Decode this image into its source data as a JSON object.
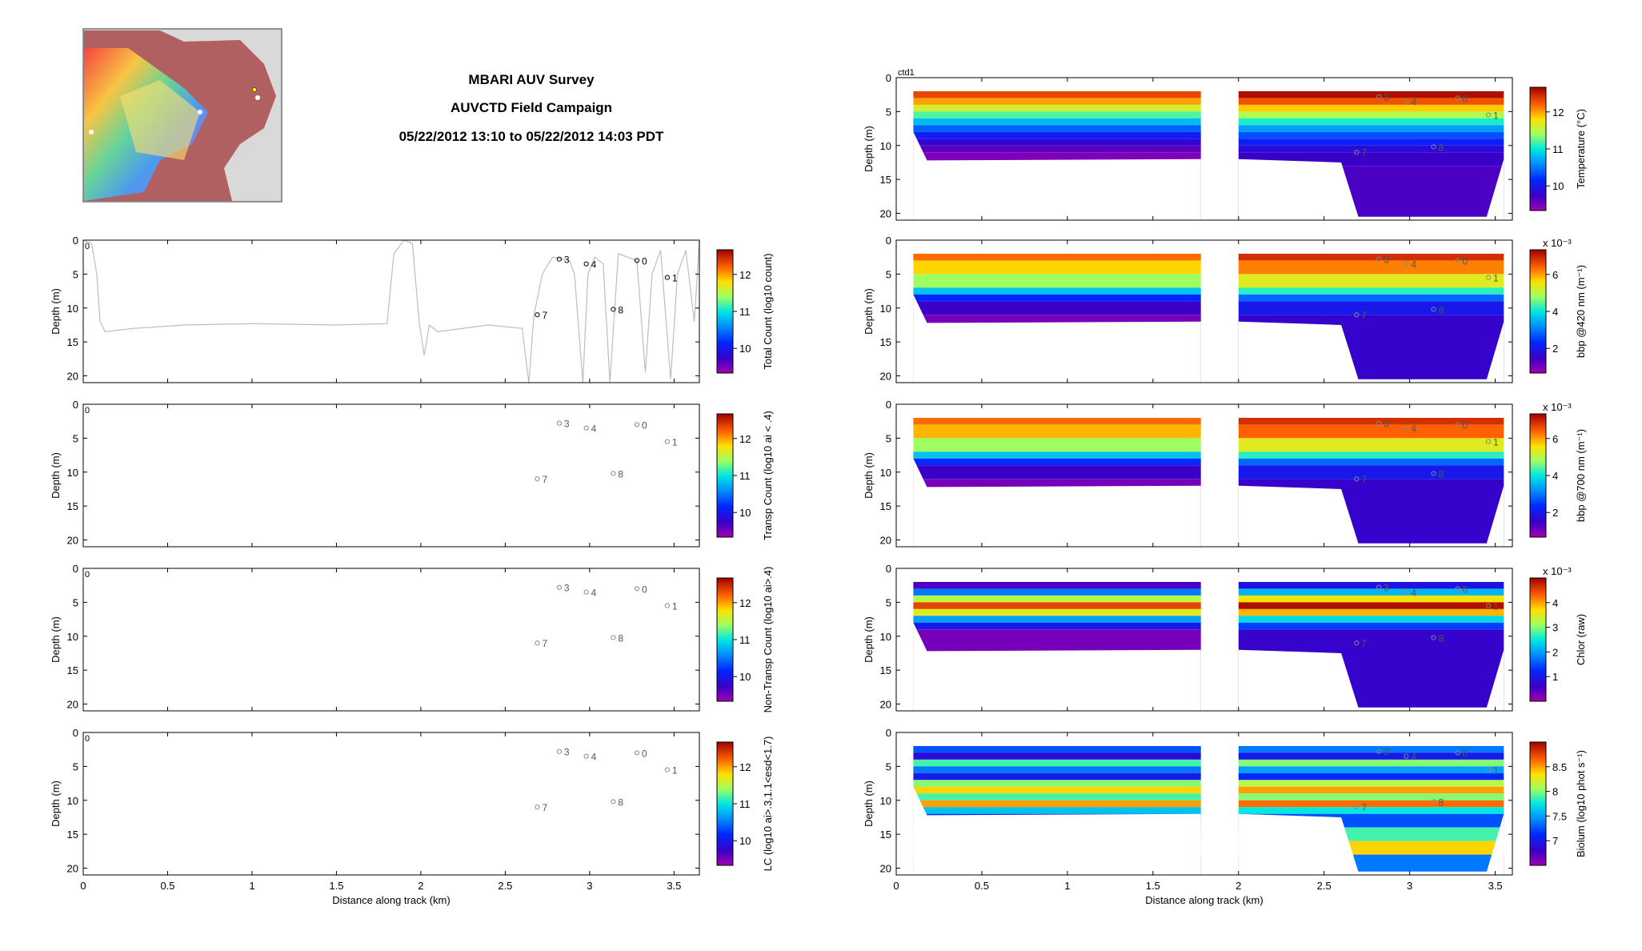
{
  "header": {
    "title": "MBARI AUV Survey",
    "campaign": "AUVCTD Field Campaign",
    "time_range": "05/22/2012 13:10 to 05/22/2012 14:03 PDT"
  },
  "colors": {
    "track_line": "#bdbdbd",
    "marker_dark": "#000000",
    "marker_light": "#888888",
    "axis": "#000000"
  },
  "colormap": "jet",
  "map_icon": "monterey-bay-location-map-icon",
  "x_axis": {
    "label": "Distance along track (km)",
    "left_ticks": [
      "0",
      "0.5",
      "1",
      "1.5",
      "2",
      "2.5",
      "3",
      "3.5"
    ],
    "right_ticks": [
      "0",
      "0.5",
      "1",
      "1.5",
      "2",
      "2.5",
      "3",
      "3.5"
    ]
  },
  "depth_axis": {
    "label": "Depth (m)",
    "ticks": [
      "0",
      "5",
      "10",
      "15",
      "20"
    ]
  },
  "profile_markers": [
    {
      "label": "0",
      "x": 3.28,
      "depth": 3.0
    },
    {
      "label": "1",
      "x": 3.46,
      "depth": 5.5
    },
    {
      "label": "3",
      "x": 2.82,
      "depth": 2.8
    },
    {
      "label": "4",
      "x": 2.98,
      "depth": 3.5
    },
    {
      "label": "7",
      "x": 2.69,
      "depth": 11.0
    },
    {
      "label": "8",
      "x": 3.14,
      "depth": 10.2
    }
  ],
  "chart_data": [
    {
      "type": "line",
      "name": "total-count",
      "cbar_label": "Total Count (log10 count)",
      "cbar_ticks": [
        "10",
        "11",
        "12"
      ],
      "x_range": [
        0,
        3.65
      ],
      "y_range": [
        0,
        21
      ],
      "top_label": "0",
      "track": [
        [
          0.0,
          0
        ],
        [
          0.05,
          0.5
        ],
        [
          0.08,
          5
        ],
        [
          0.1,
          12
        ],
        [
          0.13,
          13.5
        ],
        [
          0.3,
          13
        ],
        [
          0.6,
          12.5
        ],
        [
          1.0,
          12.3
        ],
        [
          1.5,
          12.5
        ],
        [
          1.8,
          12.3
        ],
        [
          1.84,
          2
        ],
        [
          1.9,
          0
        ],
        [
          1.95,
          0.5
        ],
        [
          1.99,
          12
        ],
        [
          2.02,
          17
        ],
        [
          2.05,
          12.5
        ],
        [
          2.1,
          13.5
        ],
        [
          2.4,
          12.5
        ],
        [
          2.6,
          13
        ],
        [
          2.64,
          21
        ],
        [
          2.67,
          11
        ],
        [
          2.72,
          5
        ],
        [
          2.78,
          2.5
        ],
        [
          2.88,
          3
        ],
        [
          2.91,
          5
        ],
        [
          2.96,
          21
        ],
        [
          2.99,
          5
        ],
        [
          3.03,
          2.5
        ],
        [
          3.08,
          3.5
        ],
        [
          3.12,
          21
        ],
        [
          3.17,
          2
        ],
        [
          3.28,
          3
        ],
        [
          3.33,
          19.5
        ],
        [
          3.37,
          5
        ],
        [
          3.42,
          1.5
        ],
        [
          3.48,
          20.5
        ],
        [
          3.52,
          5
        ],
        [
          3.57,
          1.5
        ],
        [
          3.62,
          12
        ],
        [
          3.65,
          0
        ]
      ]
    },
    {
      "type": "scatter",
      "name": "transp-count",
      "cbar_label": "Transp Count (log10 ai < .4)",
      "cbar_ticks": [
        "10",
        "11",
        "12"
      ],
      "x_range": [
        0,
        3.65
      ],
      "y_range": [
        0,
        21
      ],
      "top_label": "0"
    },
    {
      "type": "scatter",
      "name": "non-transp-count",
      "cbar_label": "Non-Transp Count (log10 ai>.4)",
      "cbar_ticks": [
        "10",
        "11",
        "12"
      ],
      "x_range": [
        0,
        3.65
      ],
      "y_range": [
        0,
        21
      ],
      "top_label": "0"
    },
    {
      "type": "scatter",
      "name": "lc-count",
      "cbar_label": "LC (log10 ai>.3,1.1<esd<1.7)",
      "cbar_ticks": [
        "10",
        "11",
        "12"
      ],
      "x_range": [
        0,
        3.65
      ],
      "y_range": [
        0,
        21
      ],
      "top_label": "0"
    },
    {
      "type": "heatmap",
      "name": "temperature",
      "cbar_label": "Temperature (°C)",
      "cbar_ticks": [
        "10",
        "11",
        "12"
      ],
      "cbar_exponent": "",
      "x_range": [
        0,
        3.6
      ],
      "y_range": [
        0,
        21
      ],
      "top_label": "ctd1",
      "layers": [
        [
          2,
          0.97
        ],
        [
          3,
          0.9
        ],
        [
          4,
          0.8
        ],
        [
          5,
          0.68
        ],
        [
          6,
          0.56
        ],
        [
          7,
          0.44
        ],
        [
          8,
          0.32
        ],
        [
          9,
          0.22
        ],
        [
          10,
          0.14
        ],
        [
          11,
          0.08
        ],
        [
          13,
          0.04
        ],
        [
          21,
          0.02
        ]
      ]
    },
    {
      "type": "heatmap",
      "name": "bbp-420",
      "cbar_label": "bbp @420 nm (m⁻¹)",
      "cbar_ticks": [
        "2",
        "4",
        "6"
      ],
      "cbar_exponent": "x 10⁻³",
      "x_range": [
        0,
        3.6
      ],
      "y_range": [
        0,
        21
      ],
      "top_label": "",
      "layers": [
        [
          3,
          0.85
        ],
        [
          5,
          0.75
        ],
        [
          7,
          0.62
        ],
        [
          8,
          0.45
        ],
        [
          9,
          0.25
        ],
        [
          11,
          0.12
        ],
        [
          21,
          0.05
        ]
      ]
    },
    {
      "type": "heatmap",
      "name": "bbp-700",
      "cbar_label": "bbp @700 nm (m⁻¹)",
      "cbar_ticks": [
        "2",
        "4",
        "6"
      ],
      "cbar_exponent": "x 10⁻³",
      "x_range": [
        0,
        3.6
      ],
      "y_range": [
        0,
        21
      ],
      "top_label": "",
      "layers": [
        [
          3,
          0.85
        ],
        [
          5,
          0.78
        ],
        [
          7,
          0.62
        ],
        [
          8,
          0.45
        ],
        [
          9,
          0.25
        ],
        [
          11,
          0.12
        ],
        [
          21,
          0.05
        ]
      ]
    },
    {
      "type": "heatmap",
      "name": "chlor",
      "cbar_label": "Chlor (raw)",
      "cbar_ticks": [
        "1",
        "2",
        "3",
        "4"
      ],
      "cbar_exponent": "x 10⁻³",
      "x_range": [
        0,
        3.6
      ],
      "y_range": [
        0,
        21
      ],
      "top_label": "",
      "layers": [
        [
          3,
          0.1
        ],
        [
          4,
          0.35
        ],
        [
          5,
          0.65
        ],
        [
          6,
          0.9
        ],
        [
          7,
          0.7
        ],
        [
          8,
          0.4
        ],
        [
          9,
          0.2
        ],
        [
          21,
          0.05
        ]
      ]
    },
    {
      "type": "heatmap",
      "name": "biolum",
      "cbar_label": "Biolum (log10 phot s⁻¹)",
      "cbar_ticks": [
        "7",
        "7.5",
        "8",
        "8.5"
      ],
      "cbar_exponent": "",
      "x_range": [
        0,
        3.6
      ],
      "y_range": [
        0,
        21
      ],
      "top_label": "",
      "layers": [
        [
          3,
          0.3
        ],
        [
          4,
          0.15
        ],
        [
          5,
          0.55
        ],
        [
          6,
          0.35
        ],
        [
          7,
          0.2
        ],
        [
          8,
          0.6
        ],
        [
          9,
          0.75
        ],
        [
          10,
          0.55
        ],
        [
          11,
          0.8
        ],
        [
          12,
          0.45
        ],
        [
          14,
          0.25
        ],
        [
          16,
          0.5
        ],
        [
          18,
          0.7
        ],
        [
          21,
          0.3
        ]
      ]
    }
  ]
}
